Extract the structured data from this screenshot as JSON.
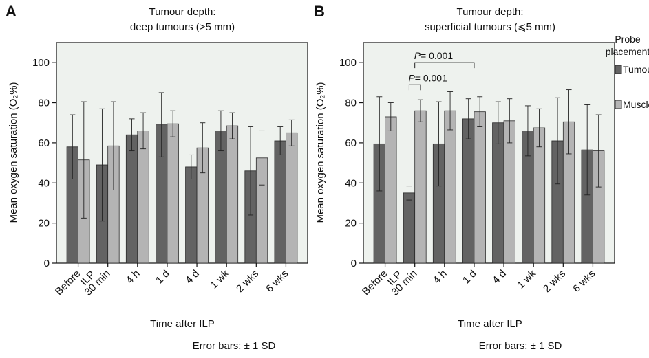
{
  "colors": {
    "plot_background": "#eef2ee",
    "tumour_bar": "#636363",
    "muscle_bar": "#b4b4b4",
    "bar_stroke": "#2a2a2a",
    "axis": "#111111"
  },
  "legend": {
    "title_line1": "Probe",
    "title_line2": "placement",
    "tumour_label": "Tumour",
    "muscle_label": "Muscle",
    "placement": "right of panel B"
  },
  "chart_data": [
    {
      "type": "bar",
      "panel_label": "A",
      "title": "Tumour depth:",
      "subtitle": "deep tumours (>5 mm)",
      "xlabel": "Time after ILP",
      "ylabel": "Mean oxygen saturation (O₂%)",
      "note": "Error bars: ± 1 SD",
      "ylim": [
        0,
        110
      ],
      "yticks": [
        "0",
        "20",
        "40",
        "60",
        "80",
        "100"
      ],
      "categories": [
        "Before ILP",
        "30 min",
        "4 h",
        "1 d",
        "4 d",
        "1 wk",
        "2 wks",
        "6 wks"
      ],
      "series": [
        {
          "name": "Tumour",
          "values": [
            58,
            49,
            64,
            69,
            48,
            66,
            46,
            61
          ],
          "error_sd": [
            16,
            28,
            8,
            16,
            6,
            10,
            22,
            7
          ]
        },
        {
          "name": "Muscle",
          "values": [
            51.5,
            58.5,
            66,
            69.5,
            57.5,
            68.5,
            52.5,
            65
          ],
          "error_sd": [
            29,
            22,
            9,
            6.5,
            12.5,
            6.5,
            13.5,
            6.5
          ]
        }
      ],
      "annotations": []
    },
    {
      "type": "bar",
      "panel_label": "B",
      "title": "Tumour depth:",
      "subtitle": "superficial tumours (⩽5 mm)",
      "xlabel": "Time after ILP",
      "ylabel": "Mean oxygen saturation (O₂%)",
      "note": "Error bars: ± 1 SD",
      "ylim": [
        0,
        110
      ],
      "yticks": [
        "0",
        "20",
        "40",
        "60",
        "80",
        "100"
      ],
      "categories": [
        "Before ILP",
        "30 min",
        "4 h",
        "1 d",
        "4 d",
        "1 wk",
        "2 wks",
        "6 wks"
      ],
      "series": [
        {
          "name": "Tumour",
          "values": [
            59.5,
            35,
            59.5,
            72,
            70,
            66,
            61,
            56.5
          ],
          "error_sd": [
            23.5,
            3.5,
            21,
            10,
            10.5,
            12.5,
            21.5,
            22.5
          ]
        },
        {
          "name": "Muscle",
          "values": [
            73,
            76,
            76,
            75.5,
            71,
            67.5,
            70.5,
            56
          ],
          "error_sd": [
            7,
            5.5,
            9.5,
            7.5,
            11,
            9.5,
            16,
            18
          ]
        }
      ],
      "annotations": [
        {
          "italic": "P",
          "text": "= 0.001",
          "from": "30 min",
          "to": "1 d",
          "level": 100
        },
        {
          "italic": "P",
          "text": "= 0.001",
          "from": "30 min",
          "to": "30 min",
          "level": 89
        }
      ]
    }
  ]
}
